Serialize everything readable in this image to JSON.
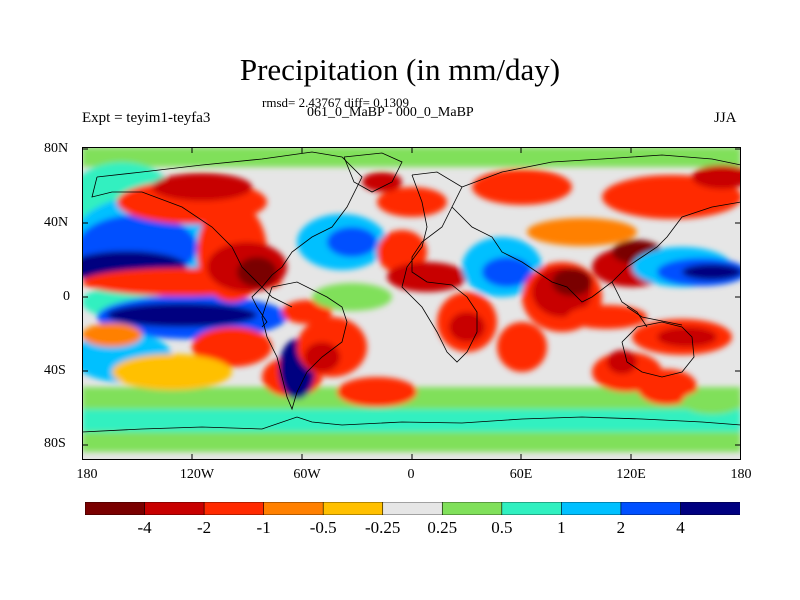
{
  "title": "Precipitation (in mm/day)",
  "stats": "rmsd= 2.43767 diff= 0.1309",
  "periods": "061_0_MaBP - 000_0_MaBP",
  "experiment": "Expt = teyim1-teyfa3",
  "season": "JJA",
  "y_tick_labels": [
    "80N",
    "40N",
    "0",
    "40S",
    "80S"
  ],
  "x_tick_labels": [
    "180",
    "120W",
    "60W",
    "0",
    "60E",
    "120E",
    "180"
  ],
  "colorbar": {
    "labels": [
      "-4",
      "-2",
      "-1",
      "-0.5",
      "-0.25",
      "0.25",
      "0.5",
      "1",
      "2",
      "4"
    ],
    "colors": [
      "#7a0000",
      "#c80000",
      "#ff2a00",
      "#ff8000",
      "#ffc000",
      "#e6e6e6",
      "#80e05a",
      "#30f0c0",
      "#00c0ff",
      "#0050ff",
      "#000080"
    ]
  }
}
